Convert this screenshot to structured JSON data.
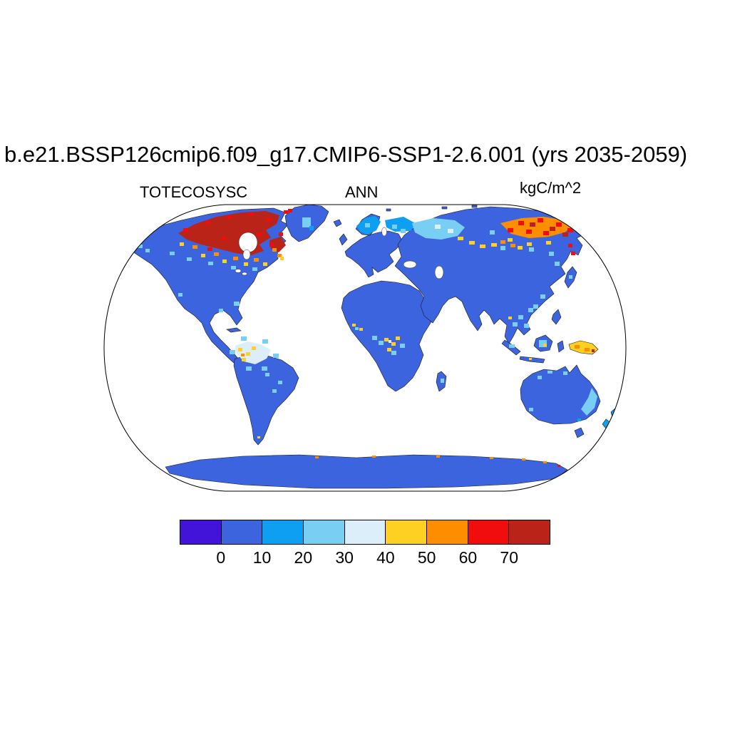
{
  "header": {
    "title": "b.e21.BSSP126cmip6.f09_g17.CMIP6-SSP1-2.6.001 (yrs 2035-2059)",
    "variable_label": "TOTECOSYSC",
    "season_label": "ANN",
    "units_label": "kgC/m^2"
  },
  "chart_data": {
    "type": "heatmap",
    "title": "b.e21.BSSP126cmip6.f09_g17.CMIP6-SSP1-2.6.001 (yrs 2035-2059)",
    "variable": "TOTECOSYSC",
    "temporal_average": "ANN",
    "units": "kgC/m^2",
    "projection": "robinson world map",
    "ocean_color": "#ffffff",
    "colorbar": {
      "orientation": "horizontal",
      "position": "bottom",
      "levels": [
        0,
        10,
        20,
        30,
        40,
        50,
        60,
        70
      ],
      "tick_labels": [
        "0",
        "10",
        "20",
        "30",
        "40",
        "50",
        "60",
        "70"
      ],
      "colors": [
        "#4213d9",
        "#3c64de",
        "#0f9ff2",
        "#79cef4",
        "#dceef9",
        "#fdd021",
        "#fe8d00",
        "#f20d0d",
        "#ba2318"
      ],
      "bin_meanings": [
        "< 0",
        "0-10",
        "10-20",
        "20-30",
        "30-40",
        "40-50",
        "50-60",
        "60-70",
        "> 70"
      ]
    },
    "depicted_values_by_region": [
      {
        "region": "boreal northern Canada / Canadian archipelago",
        "approx_kgC_m2": "60 to > 70"
      },
      {
        "region": "eastern Siberia",
        "approx_kgC_m2": "50 to > 70"
      },
      {
        "region": "western Siberia and Scandinavia",
        "approx_kgC_m2": "20 to 50"
      },
      {
        "region": "western Amazon basin",
        "approx_kgC_m2": "30 to 50"
      },
      {
        "region": "Congo basin",
        "approx_kgC_m2": "20 to 50"
      },
      {
        "region": "New Guinea / maritime southeast Asia",
        "approx_kgC_m2": "40 to 60"
      },
      {
        "region": "most other land (temperate, arid, Antarctica)",
        "approx_kgC_m2": "0 to 10"
      }
    ]
  }
}
